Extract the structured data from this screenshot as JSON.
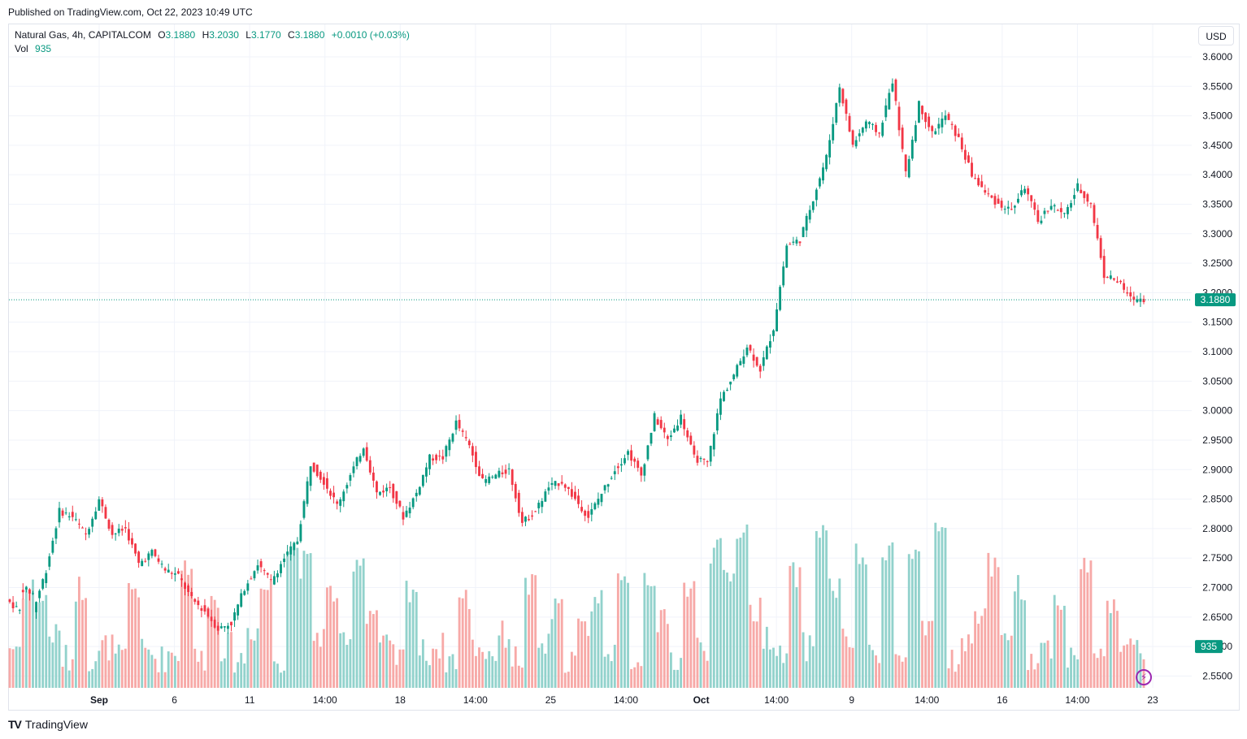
{
  "published": "Published on TradingView.com, Oct 22, 2023 10:49 UTC",
  "legend": {
    "symbol": "Natural Gas, 4h, CAPITALCOM",
    "o_label": "O",
    "o": "3.1880",
    "h_label": "H",
    "h": "3.2030",
    "l_label": "L",
    "l": "3.1770",
    "c_label": "C",
    "c": "3.1880",
    "change": "+0.0010 (+0.03%)",
    "vol_label": "Vol",
    "vol": "935"
  },
  "currency_button": "USD",
  "footer": {
    "logo": "TV",
    "brand": "TradingView"
  },
  "colors": {
    "up": "#089981",
    "down": "#f23645",
    "vol_up": "#92d2cc",
    "vol_down": "#f7a9a7",
    "grid": "#f0f3fa"
  },
  "chart_data": {
    "type": "candlestick",
    "symbol": "Natural Gas",
    "interval": "4h",
    "currency": "USD",
    "ylim": [
      2.53,
      3.655
    ],
    "y_ticks": [
      "3.6000",
      "3.5500",
      "3.5000",
      "3.4500",
      "3.4000",
      "3.3500",
      "3.3000",
      "3.2500",
      "3.2000",
      "3.1500",
      "3.1000",
      "3.0500",
      "3.0000",
      "2.9500",
      "2.9000",
      "2.8500",
      "2.8000",
      "2.7500",
      "2.7000",
      "2.6500",
      "2.6000",
      "2.5500"
    ],
    "x_ticks": [
      "Sep",
      "6",
      "11",
      "14:00",
      "18",
      "14:00",
      "25",
      "14:00",
      "Oct",
      "14:00",
      "9",
      "14:00",
      "16",
      "14:00",
      "23"
    ],
    "last_price": "3.1880",
    "last_volume": "935",
    "grid": true,
    "ohlc_keypoints": [
      [
        2.68,
        2.66
      ],
      [
        2.7,
        2.69
      ],
      [
        2.66,
        2.73
      ],
      [
        2.73,
        2.83
      ],
      [
        2.83,
        2.82
      ],
      [
        2.82,
        2.79
      ],
      [
        2.79,
        2.85
      ],
      [
        2.85,
        2.79
      ],
      [
        2.79,
        2.8
      ],
      [
        2.8,
        2.74
      ],
      [
        2.74,
        2.76
      ],
      [
        2.76,
        2.73
      ],
      [
        2.73,
        2.72
      ],
      [
        2.72,
        2.68
      ],
      [
        2.68,
        2.66
      ],
      [
        2.66,
        2.63
      ],
      [
        2.63,
        2.64
      ],
      [
        2.64,
        2.7
      ],
      [
        2.7,
        2.74
      ],
      [
        2.74,
        2.71
      ],
      [
        2.71,
        2.75
      ],
      [
        2.75,
        2.78
      ],
      [
        2.78,
        2.91
      ],
      [
        2.91,
        2.88
      ],
      [
        2.88,
        2.84
      ],
      [
        2.84,
        2.89
      ],
      [
        2.89,
        2.94
      ],
      [
        2.94,
        2.86
      ],
      [
        2.86,
        2.87
      ],
      [
        2.87,
        2.82
      ],
      [
        2.82,
        2.86
      ],
      [
        2.86,
        2.92
      ],
      [
        2.92,
        2.92
      ],
      [
        2.92,
        2.98
      ],
      [
        2.98,
        2.94
      ],
      [
        2.94,
        2.88
      ],
      [
        2.88,
        2.89
      ],
      [
        2.89,
        2.9
      ],
      [
        2.9,
        2.81
      ],
      [
        2.81,
        2.83
      ],
      [
        2.83,
        2.87
      ],
      [
        2.87,
        2.88
      ],
      [
        2.88,
        2.85
      ],
      [
        2.85,
        2.82
      ],
      [
        2.82,
        2.86
      ],
      [
        2.86,
        2.9
      ],
      [
        2.9,
        2.93
      ],
      [
        2.93,
        2.89
      ],
      [
        2.89,
        2.99
      ],
      [
        2.99,
        2.95
      ],
      [
        2.95,
        2.99
      ],
      [
        2.99,
        2.92
      ],
      [
        2.92,
        2.91
      ],
      [
        2.91,
        3.02
      ],
      [
        3.02,
        3.06
      ],
      [
        3.06,
        3.11
      ],
      [
        3.11,
        3.07
      ],
      [
        3.07,
        3.14
      ],
      [
        3.14,
        3.28
      ],
      [
        3.28,
        3.29
      ],
      [
        3.29,
        3.36
      ],
      [
        3.36,
        3.43
      ],
      [
        3.43,
        3.55
      ],
      [
        3.55,
        3.45
      ],
      [
        3.45,
        3.49
      ],
      [
        3.49,
        3.47
      ],
      [
        3.47,
        3.56
      ],
      [
        3.56,
        3.4
      ],
      [
        3.4,
        3.52
      ],
      [
        3.52,
        3.47
      ],
      [
        3.47,
        3.5
      ],
      [
        3.5,
        3.46
      ],
      [
        3.46,
        3.4
      ],
      [
        3.4,
        3.37
      ],
      [
        3.37,
        3.35
      ],
      [
        3.35,
        3.34
      ],
      [
        3.34,
        3.38
      ],
      [
        3.38,
        3.32
      ],
      [
        3.32,
        3.35
      ],
      [
        3.35,
        3.33
      ],
      [
        3.33,
        3.38
      ],
      [
        3.38,
        3.35
      ],
      [
        3.35,
        3.23
      ],
      [
        3.23,
        3.22
      ],
      [
        3.22,
        3.19
      ],
      [
        3.19,
        3.19
      ]
    ],
    "volume_keypoints": [
      2.6,
      2.7,
      2.68,
      2.62,
      2.58,
      2.7,
      2.58,
      2.6,
      2.58,
      2.7,
      2.59,
      2.58,
      2.59,
      2.74,
      2.58,
      2.68,
      2.6,
      2.58,
      2.63,
      2.7,
      2.58,
      2.77,
      2.74,
      2.62,
      2.69,
      2.6,
      2.75,
      2.66,
      2.6,
      2.58,
      2.7,
      2.59,
      2.6,
      2.58,
      2.68,
      2.6,
      2.59,
      2.62,
      2.58,
      2.7,
      2.6,
      2.66,
      2.58,
      2.63,
      2.68,
      2.6,
      2.7,
      2.58,
      2.72,
      2.64,
      2.58,
      2.7,
      2.6,
      2.76,
      2.72,
      2.8,
      2.66,
      2.62,
      2.58,
      2.72,
      2.6,
      2.8,
      2.7,
      2.61,
      2.75,
      2.58,
      2.77,
      2.58,
      2.75,
      2.62,
      2.8,
      2.58,
      2.6,
      2.66,
      2.74,
      2.6,
      2.7,
      2.58,
      2.6,
      2.68,
      2.58,
      2.74,
      2.58,
      2.68,
      2.6,
      2.59
    ]
  }
}
